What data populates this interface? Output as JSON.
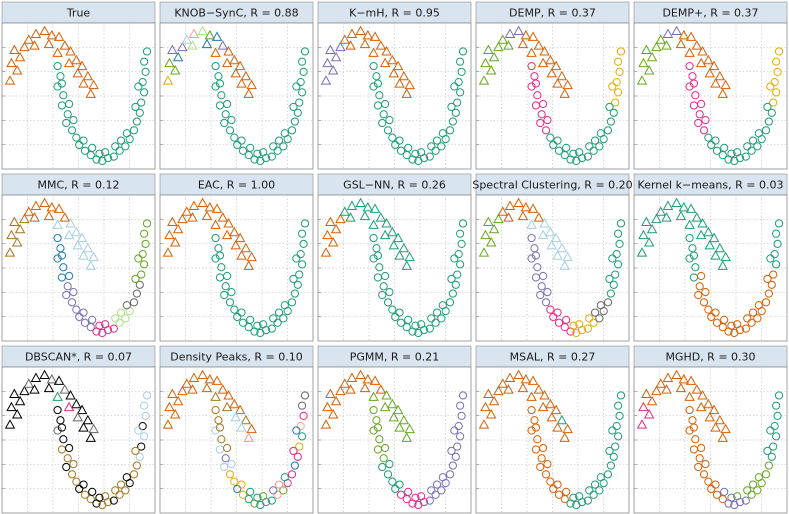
{
  "palette": [
    "#d95f02",
    "#1b9e77",
    "#7570b3",
    "#66a61e",
    "#e7298a",
    "#e6ab02",
    "#a6761d",
    "#666666",
    "#a6cee3",
    "#b2df8a",
    "#000000",
    "#1f78b4",
    "#fb9a99",
    "#fdbf6f"
  ],
  "points": {
    "triangles": {
      "x": [
        0.3,
        0.8,
        0.4,
        1.0,
        0.6,
        1.3,
        1.6,
        2.1,
        2.0,
        2.7,
        3.2,
        3.0,
        3.7,
        4.1,
        3.6,
        4.5,
        4.9,
        4.4,
        5.3,
        5.0,
        5.7,
        5.4,
        6.1,
        5.9
      ],
      "y": [
        6.2,
        6.9,
        7.4,
        7.8,
        8.3,
        8.5,
        9.0,
        9.4,
        8.6,
        9.6,
        9.3,
        8.7,
        9.2,
        8.6,
        8.1,
        8.2,
        7.6,
        7.4,
        7.2,
        6.7,
        6.5,
        6.0,
        5.9,
        5.3
      ]
    },
    "circles": {
      "x": [
        3.6,
        3.8,
        3.6,
        4.0,
        3.9,
        4.3,
        4.2,
        4.6,
        4.9,
        5.1,
        5.5,
        5.9,
        6.3,
        6.7,
        7.1,
        7.5,
        7.9,
        8.3,
        8.6,
        8.9,
        9.1,
        9.3,
        9.4,
        9.6,
        9.5,
        9.7,
        9.6,
        9.8,
        6.0,
        6.9,
        7.6,
        5.4,
        4.7,
        8.4,
        9.0,
        4.4,
        8.0,
        6.5,
        9.2,
        3.9
      ],
      "y": [
        7.2,
        6.5,
        5.8,
        5.2,
        4.5,
        3.9,
        3.3,
        2.8,
        2.3,
        1.8,
        1.4,
        1.1,
        0.8,
        0.7,
        0.9,
        1.0,
        1.4,
        1.7,
        2.2,
        2.8,
        3.4,
        4.0,
        4.7,
        5.4,
        6.1,
        6.8,
        7.5,
        8.2,
        1.6,
        1.3,
        1.7,
        2.1,
        3.5,
        2.6,
        4.4,
        4.6,
        2.1,
        1.2,
        5.8,
        6.0
      ]
    }
  },
  "panels": [
    {
      "title": "True",
      "triangle_colors": [
        0,
        0,
        0,
        0,
        0,
        0,
        0,
        0,
        0,
        0,
        0,
        0,
        0,
        0,
        0,
        0,
        0,
        0,
        0,
        0,
        0,
        0,
        0,
        0
      ],
      "circle_colors": [
        1,
        1,
        1,
        1,
        1,
        1,
        1,
        1,
        1,
        1,
        1,
        1,
        1,
        1,
        1,
        1,
        1,
        1,
        1,
        1,
        1,
        1,
        1,
        1,
        1,
        1,
        1,
        1,
        1,
        1,
        1,
        1,
        1,
        1,
        1,
        1,
        1,
        1,
        1,
        1
      ]
    },
    {
      "title": "KNOB−SynC, R = 0.88",
      "triangle_colors": [
        5,
        3,
        3,
        11,
        2,
        2,
        8,
        12,
        9,
        9,
        3,
        11,
        11,
        2,
        0,
        0,
        0,
        0,
        0,
        0,
        0,
        0,
        0,
        0
      ],
      "circle_colors": [
        1,
        1,
        1,
        1,
        1,
        1,
        1,
        1,
        1,
        1,
        1,
        1,
        1,
        1,
        1,
        1,
        1,
        1,
        1,
        1,
        1,
        1,
        1,
        1,
        1,
        1,
        1,
        1,
        1,
        1,
        1,
        1,
        1,
        1,
        1,
        1,
        1,
        1,
        1,
        1
      ]
    },
    {
      "title": "K−mH, R = 0.95",
      "triangle_colors": [
        2,
        2,
        2,
        2,
        2,
        2,
        0,
        0,
        0,
        0,
        0,
        0,
        0,
        0,
        0,
        0,
        0,
        0,
        0,
        0,
        0,
        0,
        0,
        0
      ],
      "circle_colors": [
        1,
        1,
        1,
        1,
        1,
        1,
        1,
        1,
        1,
        1,
        1,
        1,
        1,
        1,
        1,
        1,
        1,
        1,
        1,
        1,
        1,
        1,
        1,
        1,
        1,
        1,
        1,
        1,
        1,
        1,
        1,
        1,
        1,
        1,
        1,
        1,
        1,
        1,
        1,
        1
      ]
    },
    {
      "title": "DEMP, R = 0.37",
      "triangle_colors": [
        3,
        3,
        3,
        3,
        3,
        3,
        3,
        2,
        3,
        2,
        0,
        0,
        0,
        0,
        0,
        0,
        0,
        0,
        0,
        0,
        0,
        0,
        0,
        0
      ],
      "circle_colors": [
        4,
        4,
        4,
        4,
        4,
        4,
        4,
        4,
        1,
        1,
        1,
        1,
        1,
        1,
        1,
        1,
        1,
        1,
        1,
        1,
        1,
        1,
        5,
        5,
        5,
        5,
        5,
        5,
        1,
        1,
        1,
        1,
        4,
        1,
        1,
        4,
        1,
        1,
        5,
        4
      ]
    },
    {
      "title": "DEMP+, R = 0.37",
      "triangle_colors": [
        3,
        3,
        3,
        3,
        3,
        3,
        3,
        2,
        3,
        2,
        0,
        0,
        0,
        0,
        0,
        0,
        0,
        0,
        0,
        0,
        0,
        0,
        0,
        0
      ],
      "circle_colors": [
        4,
        4,
        4,
        4,
        4,
        4,
        4,
        4,
        1,
        1,
        1,
        1,
        1,
        1,
        1,
        1,
        1,
        1,
        1,
        1,
        1,
        1,
        5,
        5,
        5,
        5,
        5,
        5,
        1,
        1,
        1,
        1,
        4,
        1,
        1,
        4,
        1,
        1,
        5,
        4
      ]
    },
    {
      "title": "MMC, R = 0.12",
      "triangle_colors": [
        6,
        6,
        6,
        6,
        6,
        6,
        0,
        0,
        0,
        0,
        0,
        0,
        0,
        0,
        8,
        8,
        8,
        8,
        8,
        8,
        8,
        8,
        8,
        8
      ],
      "circle_colors": [
        11,
        11,
        11,
        11,
        11,
        2,
        2,
        2,
        2,
        2,
        2,
        2,
        4,
        4,
        4,
        4,
        9,
        9,
        9,
        7,
        7,
        7,
        3,
        3,
        3,
        3,
        3,
        3,
        2,
        4,
        9,
        2,
        2,
        7,
        3,
        11,
        9,
        4,
        3,
        11
      ]
    },
    {
      "title": "EAC, R = 1.00",
      "triangle_colors": [
        0,
        0,
        0,
        0,
        0,
        0,
        0,
        0,
        0,
        0,
        0,
        0,
        0,
        0,
        0,
        0,
        0,
        0,
        0,
        0,
        0,
        0,
        0,
        0
      ],
      "circle_colors": [
        1,
        1,
        1,
        1,
        1,
        1,
        1,
        1,
        1,
        1,
        1,
        1,
        1,
        1,
        1,
        1,
        1,
        1,
        1,
        1,
        1,
        1,
        1,
        1,
        1,
        1,
        1,
        1,
        1,
        1,
        1,
        1,
        1,
        1,
        1,
        1,
        1,
        1,
        1,
        1
      ]
    },
    {
      "title": "GSL−NN, R = 0.26",
      "triangle_colors": [
        0,
        0,
        0,
        0,
        0,
        0,
        1,
        1,
        1,
        1,
        1,
        1,
        1,
        1,
        1,
        1,
        1,
        1,
        1,
        1,
        1,
        1,
        1,
        1
      ],
      "circle_colors": [
        1,
        1,
        1,
        1,
        1,
        1,
        1,
        1,
        1,
        1,
        1,
        1,
        1,
        1,
        1,
        1,
        1,
        1,
        1,
        1,
        1,
        1,
        1,
        1,
        1,
        1,
        1,
        1,
        1,
        1,
        1,
        1,
        1,
        1,
        1,
        1,
        1,
        1,
        1,
        1
      ]
    },
    {
      "title": "Spectral Clustering, R = 0.20",
      "triangle_colors": [
        3,
        3,
        3,
        3,
        3,
        3,
        0,
        0,
        0,
        0,
        0,
        0,
        0,
        0,
        8,
        8,
        8,
        8,
        8,
        8,
        8,
        8,
        8,
        8
      ],
      "circle_colors": [
        2,
        2,
        2,
        2,
        2,
        2,
        2,
        2,
        4,
        4,
        4,
        4,
        4,
        5,
        5,
        5,
        5,
        7,
        7,
        7,
        1,
        1,
        1,
        1,
        1,
        1,
        1,
        1,
        4,
        5,
        5,
        4,
        2,
        7,
        1,
        2,
        7,
        5,
        1,
        2
      ]
    },
    {
      "title": "Kernel k−means, R = 0.03",
      "triangle_colors": [
        1,
        1,
        1,
        1,
        1,
        1,
        1,
        1,
        1,
        1,
        1,
        1,
        1,
        1,
        1,
        1,
        1,
        1,
        1,
        1,
        1,
        1,
        1,
        1
      ],
      "circle_colors": [
        1,
        1,
        1,
        1,
        1,
        0,
        0,
        0,
        0,
        0,
        0,
        0,
        0,
        0,
        0,
        0,
        0,
        0,
        0,
        0,
        0,
        0,
        0,
        1,
        1,
        1,
        1,
        1,
        0,
        0,
        0,
        0,
        0,
        0,
        0,
        0,
        0,
        0,
        1,
        1
      ]
    },
    {
      "title": "DBSCAN*, R = 0.07",
      "triangle_colors": [
        10,
        10,
        10,
        10,
        10,
        10,
        7,
        10,
        10,
        10,
        7,
        10,
        10,
        7,
        1,
        10,
        10,
        4,
        10,
        7,
        10,
        10,
        7,
        10
      ],
      "circle_colors": [
        10,
        10,
        7,
        10,
        6,
        6,
        10,
        6,
        6,
        10,
        6,
        6,
        10,
        6,
        6,
        10,
        6,
        6,
        10,
        6,
        6,
        8,
        10,
        8,
        10,
        8,
        8,
        8,
        10,
        6,
        6,
        10,
        6,
        10,
        6,
        10,
        6,
        10,
        8,
        10
      ]
    },
    {
      "title": "Density Peaks, R = 0.10",
      "triangle_colors": [
        0,
        0,
        0,
        0,
        0,
        0,
        0,
        0,
        0,
        0,
        0,
        0,
        0,
        0,
        6,
        0,
        0,
        6,
        0,
        8,
        6,
        8,
        0,
        12
      ],
      "circle_colors": [
        6,
        6,
        8,
        6,
        8,
        2,
        8,
        5,
        5,
        11,
        5,
        1,
        3,
        1,
        2,
        1,
        12,
        3,
        4,
        4,
        11,
        4,
        5,
        1,
        12,
        4,
        7,
        7,
        1,
        3,
        2,
        5,
        8,
        1,
        4,
        6,
        12,
        1,
        11,
        6
      ]
    },
    {
      "title": "PGMM, R = 0.21",
      "triangle_colors": [
        0,
        0,
        0,
        0,
        0,
        0,
        0,
        0,
        0,
        0,
        0,
        0,
        0,
        0,
        3,
        3,
        3,
        3,
        3,
        3,
        3,
        3,
        3,
        3
      ],
      "circle_colors": [
        3,
        3,
        3,
        3,
        3,
        3,
        1,
        1,
        1,
        1,
        4,
        4,
        4,
        4,
        4,
        2,
        2,
        2,
        2,
        2,
        2,
        2,
        2,
        2,
        2,
        2,
        2,
        2,
        4,
        4,
        2,
        1,
        1,
        2,
        2,
        3,
        2,
        4,
        2,
        3
      ]
    },
    {
      "title": "MSAL, R = 0.27",
      "triangle_colors": [
        0,
        0,
        0,
        0,
        0,
        0,
        0,
        0,
        0,
        0,
        0,
        0,
        0,
        0,
        0,
        0,
        0,
        0,
        0,
        0,
        1,
        0,
        0,
        0
      ],
      "circle_colors": [
        0,
        0,
        0,
        0,
        0,
        0,
        0,
        0,
        0,
        0,
        0,
        0,
        1,
        1,
        1,
        1,
        1,
        1,
        1,
        1,
        1,
        1,
        1,
        1,
        1,
        1,
        1,
        1,
        0,
        1,
        1,
        0,
        0,
        1,
        1,
        0,
        1,
        1,
        1,
        0
      ]
    },
    {
      "title": "MGHD, R = 0.30",
      "triangle_colors": [
        4,
        4,
        4,
        0,
        0,
        0,
        0,
        0,
        0,
        0,
        0,
        0,
        0,
        0,
        0,
        0,
        0,
        0,
        0,
        0,
        0,
        0,
        0,
        0
      ],
      "circle_colors": [
        0,
        0,
        0,
        0,
        0,
        0,
        0,
        0,
        0,
        0,
        0,
        0,
        2,
        2,
        2,
        2,
        3,
        3,
        3,
        3,
        3,
        1,
        1,
        1,
        1,
        1,
        1,
        1,
        2,
        3,
        3,
        0,
        0,
        3,
        1,
        0,
        3,
        2,
        1,
        0
      ]
    }
  ]
}
